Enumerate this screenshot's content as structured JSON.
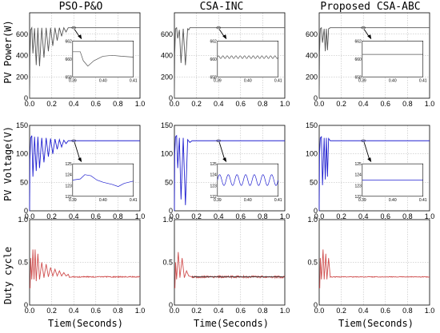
{
  "chart_data": {
    "type": "line",
    "columns": [
      "PSO-P&O",
      "CSA-INC",
      "Proposed CSA-ABC"
    ],
    "rows": [
      {
        "ylabel": "PV Power(W)",
        "ylim": [
          0,
          800
        ],
        "yticks": [
          "0",
          "200",
          "400",
          "600"
        ]
      },
      {
        "ylabel": "PV Voltage(V)",
        "ylim": [
          0,
          150
        ],
        "yticks": [
          "0",
          "50",
          "100",
          "150"
        ]
      },
      {
        "ylabel": "Duty cycle",
        "ylim": [
          0,
          1.0
        ],
        "yticks": [
          "0",
          "0.5",
          "1.0"
        ]
      }
    ],
    "xticks": [
      "0.0",
      "0.2",
      "0.4",
      "0.6",
      "0.8",
      "1.0"
    ],
    "xlim": [
      0,
      1.0
    ],
    "xlabels": [
      "Tiem(Seconds)",
      "Time(Seconds)",
      "Tiem(Seconds)"
    ],
    "grid": true,
    "colors": {
      "power": "#555555",
      "voltage": "#2020d0",
      "duty": "#d05050",
      "duty_ref": "#303030"
    },
    "panels": [
      {
        "row": 0,
        "col": 0,
        "settle_x": 0.36,
        "steady": 660,
        "transient": [
          [
            0,
            0
          ],
          [
            0.003,
            400
          ],
          [
            0.01,
            640
          ],
          [
            0.02,
            660
          ],
          [
            0.03,
            420
          ],
          [
            0.045,
            655
          ],
          [
            0.06,
            310
          ],
          [
            0.075,
            660
          ],
          [
            0.09,
            300
          ],
          [
            0.11,
            660
          ],
          [
            0.13,
            380
          ],
          [
            0.15,
            660
          ],
          [
            0.17,
            440
          ],
          [
            0.19,
            660
          ],
          [
            0.21,
            490
          ],
          [
            0.23,
            660
          ],
          [
            0.25,
            540
          ],
          [
            0.27,
            660
          ],
          [
            0.29,
            580
          ],
          [
            0.31,
            660
          ],
          [
            0.33,
            620
          ],
          [
            0.35,
            660
          ],
          [
            0.36,
            660
          ]
        ],
        "inset": {
          "xlim": [
            0.39,
            0.41
          ],
          "ylim": [
            658,
            662
          ],
          "yticks": [
            "658",
            "660",
            "662"
          ],
          "xticks": [
            "0.39",
            "0.40",
            "0.41"
          ],
          "points": [
            [
              0.39,
              660.8
            ],
            [
              0.3925,
              660.8
            ],
            [
              0.3935,
              659.8
            ],
            [
              0.395,
              659.2
            ],
            [
              0.397,
              659.8
            ],
            [
              0.4,
              660.3
            ],
            [
              0.403,
              660.4
            ],
            [
              0.406,
              660.3
            ],
            [
              0.41,
              660.2
            ]
          ]
        }
      },
      {
        "row": 0,
        "col": 1,
        "settle_x": 0.14,
        "steady": 660,
        "transient": [
          [
            0,
            0
          ],
          [
            0.003,
            420
          ],
          [
            0.01,
            650
          ],
          [
            0.02,
            660
          ],
          [
            0.03,
            560
          ],
          [
            0.045,
            640
          ],
          [
            0.06,
            330
          ],
          [
            0.08,
            650
          ],
          [
            0.1,
            310
          ],
          [
            0.12,
            650
          ],
          [
            0.13,
            640
          ],
          [
            0.14,
            660
          ]
        ],
        "inset": {
          "xlim": [
            0.39,
            0.41
          ],
          "ylim": [
            658,
            662
          ],
          "yticks": [
            "658",
            "660",
            "662"
          ],
          "xticks": [
            "0.39",
            "0.40",
            "0.41"
          ],
          "wave": {
            "center": 660.2,
            "amp": 0.15,
            "cycles": 14
          }
        }
      },
      {
        "row": 0,
        "col": 2,
        "settle_x": 0.1,
        "steady": 660,
        "transient": [
          [
            0,
            0
          ],
          [
            0.003,
            430
          ],
          [
            0.01,
            650
          ],
          [
            0.02,
            660
          ],
          [
            0.03,
            520
          ],
          [
            0.045,
            650
          ],
          [
            0.055,
            440
          ],
          [
            0.065,
            650
          ],
          [
            0.075,
            450
          ],
          [
            0.085,
            650
          ],
          [
            0.1,
            660
          ]
        ],
        "inset": {
          "xlim": [
            0.39,
            0.41
          ],
          "ylim": [
            658,
            662
          ],
          "yticks": [
            "658",
            "660",
            "662"
          ],
          "xticks": [
            "0.39",
            "0.40",
            "0.41"
          ],
          "points": [
            [
              0.39,
              660.5
            ],
            [
              0.41,
              660.5
            ]
          ]
        }
      },
      {
        "row": 1,
        "col": 0,
        "settle_x": 0.36,
        "steady": 123,
        "transient": [
          [
            0,
            0
          ],
          [
            0.003,
            90
          ],
          [
            0.01,
            128
          ],
          [
            0.02,
            132
          ],
          [
            0.03,
            60
          ],
          [
            0.045,
            130
          ],
          [
            0.06,
            70
          ],
          [
            0.075,
            130
          ],
          [
            0.09,
            75
          ],
          [
            0.11,
            128
          ],
          [
            0.13,
            85
          ],
          [
            0.15,
            128
          ],
          [
            0.17,
            95
          ],
          [
            0.19,
            127
          ],
          [
            0.21,
            100
          ],
          [
            0.23,
            126
          ],
          [
            0.25,
            108
          ],
          [
            0.27,
            125
          ],
          [
            0.29,
            112
          ],
          [
            0.31,
            124
          ],
          [
            0.33,
            118
          ],
          [
            0.35,
            123
          ],
          [
            0.36,
            123
          ]
        ],
        "inset": {
          "xlim": [
            0.39,
            0.41
          ],
          "ylim": [
            122,
            125
          ],
          "yticks": [
            "122",
            "123",
            "124",
            "125"
          ],
          "xticks": [
            "0.39",
            "0.40",
            "0.41"
          ],
          "points": [
            [
              0.39,
              123.5
            ],
            [
              0.3925,
              123.6
            ],
            [
              0.394,
              124.0
            ],
            [
              0.396,
              123.9
            ],
            [
              0.398,
              123.5
            ],
            [
              0.4,
              123.3
            ],
            [
              0.403,
              123.1
            ],
            [
              0.405,
              122.9
            ],
            [
              0.407,
              123.2
            ],
            [
              0.41,
              123.4
            ]
          ]
        }
      },
      {
        "row": 1,
        "col": 1,
        "settle_x": 0.16,
        "steady": 123,
        "transient": [
          [
            0,
            0
          ],
          [
            0.003,
            100
          ],
          [
            0.01,
            130
          ],
          [
            0.02,
            132
          ],
          [
            0.03,
            75
          ],
          [
            0.045,
            128
          ],
          [
            0.06,
            20
          ],
          [
            0.08,
            128
          ],
          [
            0.1,
            10
          ],
          [
            0.12,
            125
          ],
          [
            0.14,
            120
          ],
          [
            0.16,
            123
          ]
        ],
        "inset": {
          "xlim": [
            0.39,
            0.41
          ],
          "ylim": [
            122,
            125
          ],
          "yticks": [
            "122",
            "123",
            "124",
            "125"
          ],
          "xticks": [
            "0.39",
            "0.40",
            "0.41"
          ],
          "wave": {
            "center": 123.5,
            "amp": 0.5,
            "cycles": 7
          }
        }
      },
      {
        "row": 1,
        "col": 2,
        "settle_x": 0.1,
        "steady": 123,
        "transient": [
          [
            0,
            0
          ],
          [
            0.003,
            100
          ],
          [
            0.01,
            128
          ],
          [
            0.02,
            130
          ],
          [
            0.03,
            45
          ],
          [
            0.045,
            128
          ],
          [
            0.055,
            55
          ],
          [
            0.065,
            128
          ],
          [
            0.075,
            60
          ],
          [
            0.085,
            127
          ],
          [
            0.1,
            123
          ]
        ],
        "inset": {
          "xlim": [
            0.39,
            0.41
          ],
          "ylim": [
            122,
            125
          ],
          "yticks": [
            "122",
            "123",
            "124",
            "125"
          ],
          "xticks": [
            "0.39",
            "0.40",
            "0.41"
          ],
          "points": [
            [
              0.39,
              123.5
            ],
            [
              0.41,
              123.5
            ]
          ]
        }
      },
      {
        "row": 2,
        "col": 0,
        "settle_x": 0.36,
        "steady": 0.33,
        "transient": [
          [
            0,
            0.2
          ],
          [
            0.005,
            0.2
          ],
          [
            0.01,
            0.55
          ],
          [
            0.02,
            0.3
          ],
          [
            0.03,
            0.65
          ],
          [
            0.04,
            0.3
          ],
          [
            0.05,
            0.65
          ],
          [
            0.06,
            0.28
          ],
          [
            0.075,
            0.6
          ],
          [
            0.09,
            0.3
          ],
          [
            0.11,
            0.5
          ],
          [
            0.13,
            0.32
          ],
          [
            0.15,
            0.48
          ],
          [
            0.17,
            0.33
          ],
          [
            0.19,
            0.44
          ],
          [
            0.21,
            0.34
          ],
          [
            0.23,
            0.42
          ],
          [
            0.25,
            0.34
          ],
          [
            0.27,
            0.4
          ],
          [
            0.29,
            0.34
          ],
          [
            0.31,
            0.38
          ],
          [
            0.33,
            0.34
          ],
          [
            0.35,
            0.36
          ],
          [
            0.36,
            0.33
          ]
        ],
        "noise": 0.006
      },
      {
        "row": 2,
        "col": 1,
        "settle_x": 0.16,
        "steady": 0.33,
        "transient": [
          [
            0,
            0.2
          ],
          [
            0.005,
            0.2
          ],
          [
            0.01,
            0.5
          ],
          [
            0.02,
            0.3
          ],
          [
            0.035,
            0.62
          ],
          [
            0.05,
            0.32
          ],
          [
            0.07,
            0.55
          ],
          [
            0.09,
            0.32
          ],
          [
            0.11,
            0.4
          ],
          [
            0.13,
            0.34
          ],
          [
            0.16,
            0.33
          ]
        ],
        "noise": 0.012,
        "ref_line": true
      },
      {
        "row": 2,
        "col": 2,
        "settle_x": 0.1,
        "steady": 0.33,
        "transient": [
          [
            0,
            0.2
          ],
          [
            0.005,
            0.2
          ],
          [
            0.01,
            0.55
          ],
          [
            0.02,
            0.3
          ],
          [
            0.035,
            0.65
          ],
          [
            0.045,
            0.3
          ],
          [
            0.06,
            0.6
          ],
          [
            0.07,
            0.3
          ],
          [
            0.085,
            0.55
          ],
          [
            0.1,
            0.33
          ]
        ],
        "noise": 0.004
      }
    ]
  }
}
